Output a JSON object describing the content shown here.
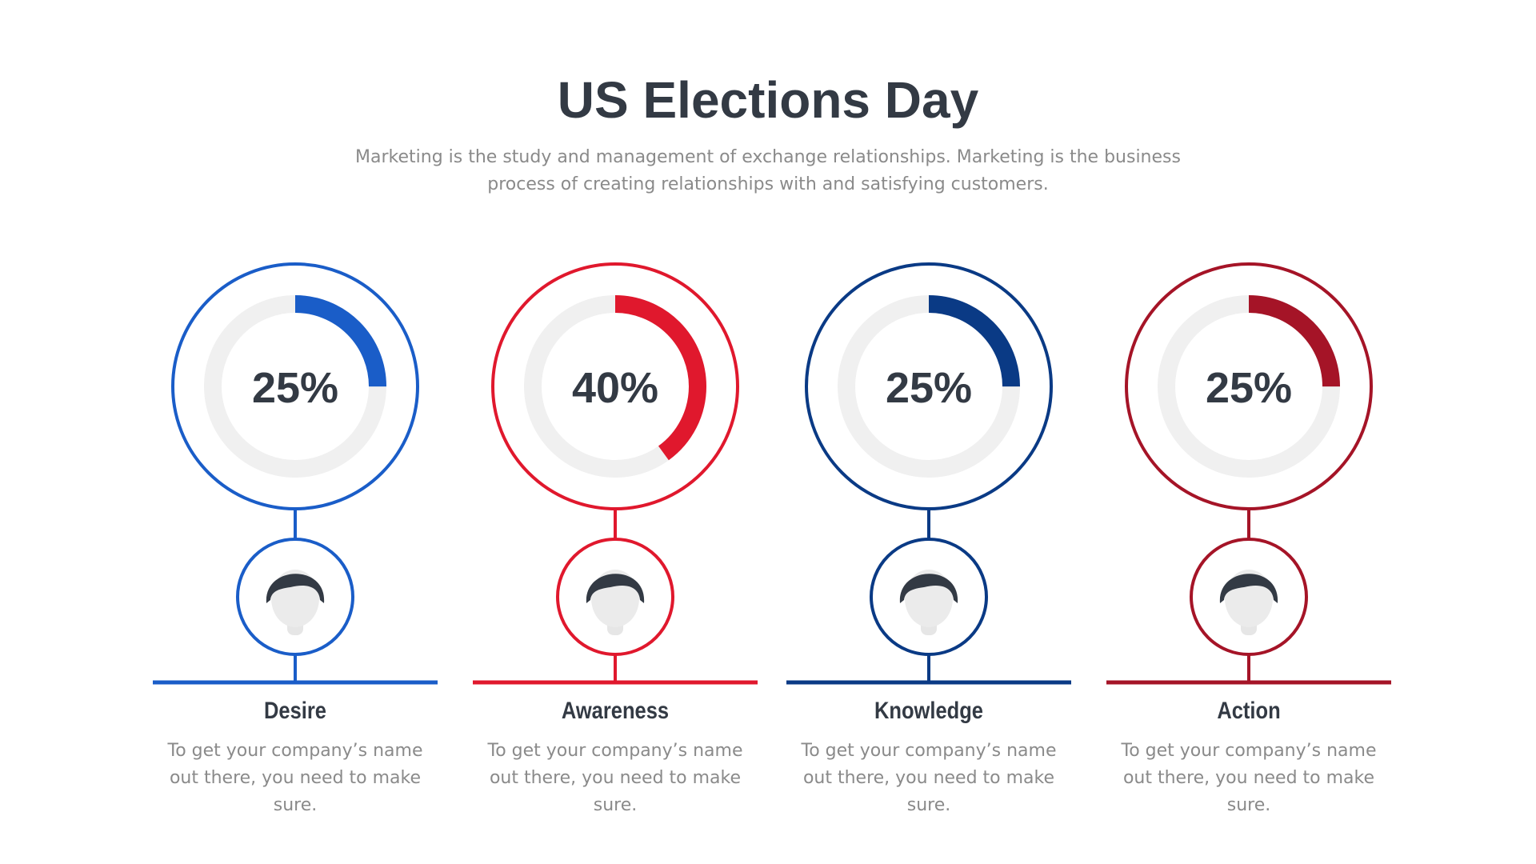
{
  "title": "US Elections Day",
  "subtitle": "Marketing is the study and management of exchange relationships. Marketing is the business process of creating relationships with and satisfying customers.",
  "items": [
    {
      "name": "Desire",
      "percent": {
        "value": 25,
        "label": "25%"
      },
      "color": "#1a5dc8",
      "description": "To get your company’s name out there, you need to make sure."
    },
    {
      "name": "Awareness",
      "percent": {
        "value": 40,
        "label": "40%"
      },
      "color": "#e0182d",
      "description": "To get your company’s name out there, you need to make sure."
    },
    {
      "name": "Knowledge",
      "percent": {
        "value": 25,
        "label": "25%"
      },
      "color": "#0a3a85",
      "description": "To get your company’s name out there, you need to make sure."
    },
    {
      "name": "Action",
      "percent": {
        "value": 25,
        "label": "25%"
      },
      "color": "#a51427",
      "description": "To get your company’s name out there, you need to make sure."
    }
  ]
}
